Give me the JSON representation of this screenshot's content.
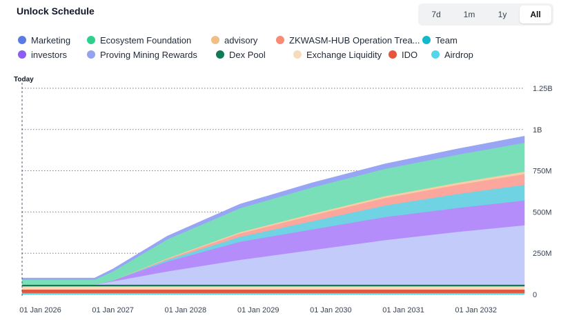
{
  "header": {
    "title": "Unlock Schedule"
  },
  "range_buttons": [
    {
      "label": "7d",
      "active": false
    },
    {
      "label": "1m",
      "active": false
    },
    {
      "label": "1y",
      "active": false
    },
    {
      "label": "All",
      "active": true
    }
  ],
  "legend": [
    {
      "name": "Marketing",
      "color": "#5b7be3"
    },
    {
      "name": "Ecosystem Foundation",
      "color": "#2fcf8c"
    },
    {
      "name": "advisory",
      "color": "#efbf87"
    },
    {
      "name": "ZKWASM-HUB Operation Trea...",
      "color": "#f98a73"
    },
    {
      "name": "Team",
      "color": "#14b8c8"
    },
    {
      "name": "investors",
      "color": "#8b5cf6"
    },
    {
      "name": "Proving Mining Rewards",
      "color": "#93a3f0"
    },
    {
      "name": "Dex Pool",
      "color": "#0f7a55"
    },
    {
      "name": "Exchange Liquidity",
      "color": "#f7dbbd"
    },
    {
      "name": "IDO",
      "color": "#e4553b"
    },
    {
      "name": "Airdrop",
      "color": "#54d6ea"
    }
  ],
  "chart_data": {
    "type": "area",
    "stacked": true,
    "today_label": "Today",
    "x_start": "2025-10-01",
    "x_end": "2032-09-01",
    "x_ticks": [
      "01 Jan 2026",
      "01 Jan 2027",
      "01 Jan 2028",
      "01 Jan 2029",
      "01 Jan 2030",
      "01 Jan 2031",
      "01 Jan 2032"
    ],
    "x_tick_dates": [
      "2026-01-01",
      "2027-01-01",
      "2028-01-01",
      "2029-01-01",
      "2030-01-01",
      "2031-01-01",
      "2032-01-01"
    ],
    "y_ticks": [
      "0",
      "250M",
      "500M",
      "750M",
      "1B",
      "1.25B"
    ],
    "y_tick_values": [
      0,
      250000000,
      500000000,
      750000000,
      1000000000,
      1250000000
    ],
    "ylim": [
      0,
      1250000000
    ],
    "grid": true,
    "legend_position": "top",
    "x_dates": [
      "2025-10-01",
      "2026-10-01",
      "2027-01-01",
      "2027-10-01",
      "2028-10-01",
      "2029-10-01",
      "2030-10-01",
      "2031-10-01",
      "2032-09-01"
    ],
    "series": [
      {
        "name": "Airdrop",
        "color": "#54d6ea",
        "values": [
          10000000,
          10000000,
          10000000,
          10000000,
          10000000,
          10000000,
          10000000,
          10000000,
          10000000
        ]
      },
      {
        "name": "IDO",
        "color": "#e4553b",
        "values": [
          20000000,
          20000000,
          20000000,
          20000000,
          20000000,
          20000000,
          20000000,
          20000000,
          20000000
        ]
      },
      {
        "name": "Exchange Liquidity",
        "color": "#f7dbbd",
        "values": [
          20000000,
          20000000,
          20000000,
          20000000,
          20000000,
          20000000,
          20000000,
          20000000,
          20000000
        ]
      },
      {
        "name": "Dex Pool",
        "color": "#0f7a55",
        "values": [
          10000000,
          10000000,
          10000000,
          10000000,
          10000000,
          10000000,
          10000000,
          10000000,
          10000000
        ]
      },
      {
        "name": "Proving Mining Rewards",
        "color": "#c2cbf9",
        "values": [
          0,
          0,
          20000000,
          80000000,
          150000000,
          210000000,
          270000000,
          320000000,
          360000000
        ]
      },
      {
        "name": "investors",
        "color": "#b48dfa",
        "values": [
          0,
          0,
          5000000,
          60000000,
          110000000,
          125000000,
          140000000,
          145000000,
          150000000
        ]
      },
      {
        "name": "Team",
        "color": "#6fd3e4",
        "values": [
          0,
          0,
          0,
          10000000,
          30000000,
          50000000,
          70000000,
          85000000,
          95000000
        ]
      },
      {
        "name": "ZKWASM-HUB Operation Trea...",
        "color": "#fca79d",
        "values": [
          0,
          0,
          0,
          5000000,
          20000000,
          35000000,
          45000000,
          55000000,
          65000000
        ]
      },
      {
        "name": "advisory",
        "color": "#f6cda4",
        "values": [
          0,
          0,
          0,
          4000000,
          8000000,
          10000000,
          12000000,
          13000000,
          15000000
        ]
      },
      {
        "name": "Ecosystem Foundation",
        "color": "#79dfb8",
        "values": [
          30000000,
          30000000,
          55000000,
          115000000,
          145000000,
          160000000,
          165000000,
          170000000,
          175000000
        ]
      },
      {
        "name": "Marketing",
        "color": "#97a5f4",
        "values": [
          10000000,
          10000000,
          15000000,
          20000000,
          25000000,
          28000000,
          30000000,
          35000000,
          40000000
        ]
      }
    ]
  }
}
